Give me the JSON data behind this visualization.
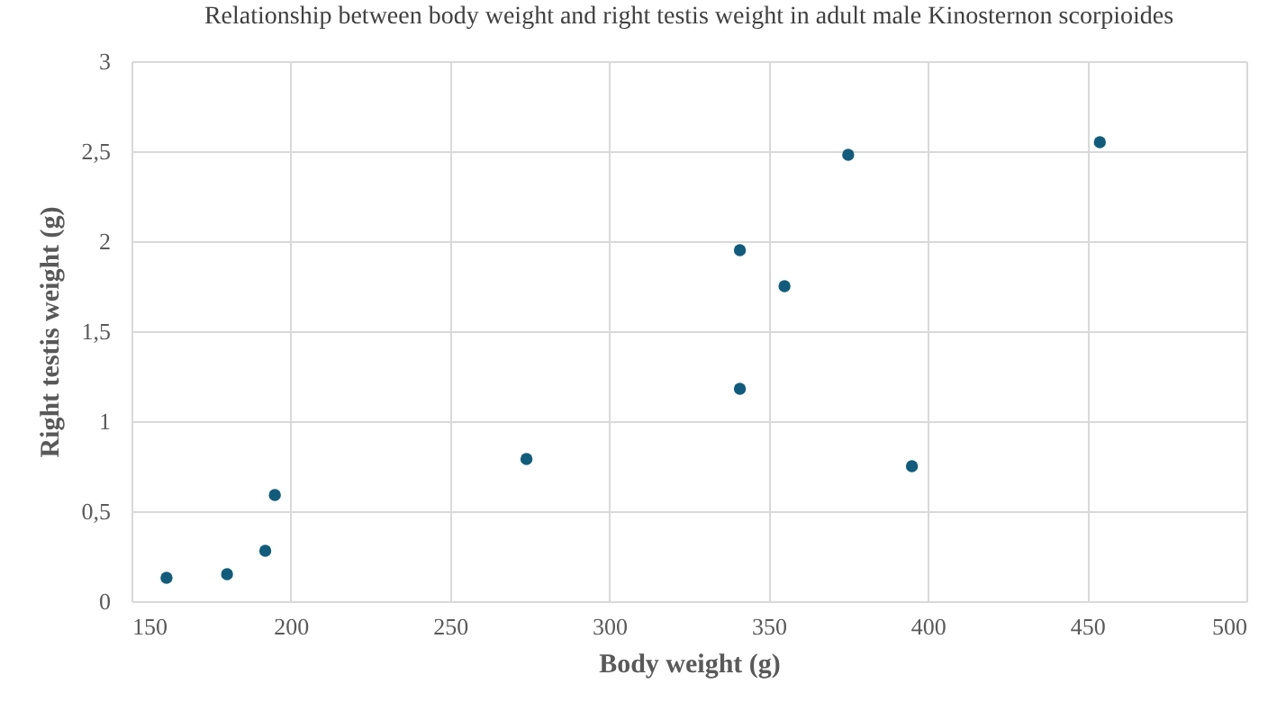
{
  "chart_data": {
    "type": "scatter",
    "title": "Relationship between body weight and right testis weight in adult male Kinosternon scorpioides",
    "xlabel": "Body weight (g)",
    "ylabel": "Right testis weight (g)",
    "x": [
      161,
      180,
      192,
      195,
      274,
      341,
      341,
      355,
      375,
      395,
      454
    ],
    "series": [
      {
        "color": "#115c7c",
        "values": [
          0.13,
          0.15,
          0.28,
          0.59,
          0.79,
          1.95,
          1.18,
          1.75,
          2.48,
          0.75,
          2.55
        ]
      }
    ],
    "xlim": [
      150,
      500
    ],
    "xticks": [
      150,
      200,
      250,
      300,
      350,
      400,
      450,
      500
    ],
    "ylim": [
      0,
      3
    ],
    "yticks": [
      0,
      {
        "value": 0.5,
        "label": "0,5"
      },
      1,
      {
        "value": 1.5,
        "label": "1,5"
      },
      2,
      {
        "value": 2.5,
        "label": "2,5"
      },
      3
    ],
    "grid": true,
    "marker": "circle"
  }
}
